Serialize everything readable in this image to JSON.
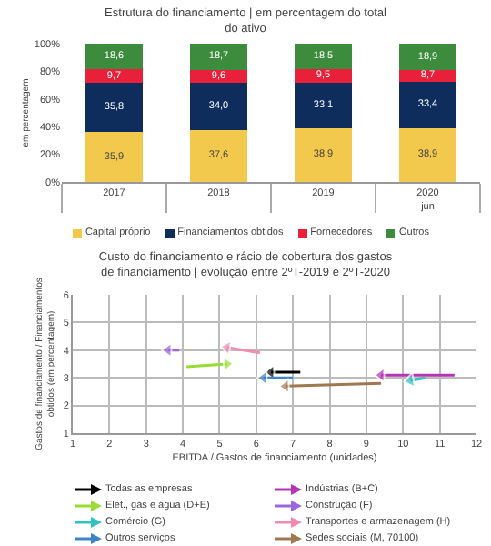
{
  "chart_data": [
    {
      "type": "bar",
      "title": "Estrutura do financiamento | em percentagem do total\ndo ativo",
      "ylabel": "em percentagem",
      "categories": [
        "2017",
        "2018",
        "2019",
        "2020\njun"
      ],
      "stacked": true,
      "legend": "bottom",
      "ylim": [
        0,
        100
      ],
      "yticks": [
        {
          "value": 0,
          "label": "0%"
        },
        {
          "value": 20,
          "label": "20%"
        },
        {
          "value": 40,
          "label": "40%"
        },
        {
          "value": 60,
          "label": "60%"
        },
        {
          "value": 80,
          "label": "80%"
        },
        {
          "value": 100,
          "label": "100%"
        }
      ],
      "series": [
        {
          "name": "Capital próprio",
          "color": "#f2c94c",
          "values": [
            35.9,
            37.6,
            38.9,
            38.9
          ],
          "value_labels": [
            "35,9",
            "37,6",
            "38,9",
            "38,9"
          ]
        },
        {
          "name": "Financiamentos obtidos",
          "color": "#0f2d5c",
          "values": [
            35.8,
            34.0,
            33.1,
            33.4
          ],
          "value_labels": [
            "35,8",
            "34,0",
            "33,1",
            "33,4"
          ]
        },
        {
          "name": "Fornecedores",
          "color": "#e8203a",
          "values": [
            9.7,
            9.6,
            9.5,
            8.7
          ],
          "value_labels": [
            "9,7",
            "9,6",
            "9,5",
            "8,7"
          ]
        },
        {
          "name": "Outros",
          "color": "#3d8b3d",
          "values": [
            18.6,
            18.7,
            18.5,
            18.9
          ],
          "value_labels": [
            "18,6",
            "18,7",
            "18,5",
            "18,9"
          ]
        }
      ]
    },
    {
      "type": "line",
      "title": "Custo do financiamento e rácio de cobertura dos gastos\nde financiamento | evolução entre 2ºT-2019 e 2ºT-2020",
      "xlabel": "EBITDA / Gastos de financiamento (unidades)",
      "ylabel": "Gastos de financiamento / Financiamentos\nobtidos (em percentagem)",
      "xlim": [
        1,
        12
      ],
      "xticks": [
        1,
        2,
        3,
        4,
        5,
        6,
        7,
        8,
        9,
        10,
        11,
        12
      ],
      "ylim": [
        1,
        6
      ],
      "yticks": [
        1,
        2,
        3,
        4,
        5,
        6
      ],
      "grid": true,
      "legend": "bottom",
      "marker": "triangle",
      "series": [
        {
          "name": "Todas as empresas",
          "color": "#000000",
          "x": [
            7.2,
            6.4
          ],
          "values": [
            3.2,
            3.2
          ]
        },
        {
          "name": "Indústrias (B+C)",
          "color": "#b533b5",
          "x": [
            11.4,
            9.4
          ],
          "values": [
            3.1,
            3.1
          ]
        },
        {
          "name": "Elet., gás e água (D+E)",
          "color": "#99dd33",
          "x": [
            4.1,
            5.2
          ],
          "values": [
            3.4,
            3.5
          ]
        },
        {
          "name": "Construção (F)",
          "color": "#9966dd",
          "x": [
            3.9,
            3.6
          ],
          "values": [
            4.0,
            4.0
          ]
        },
        {
          "name": "Comércio (G)",
          "color": "#33c0c0",
          "x": [
            10.6,
            10.2
          ],
          "values": [
            3.0,
            2.9
          ]
        },
        {
          "name": "Transportes e armazenagem (H)",
          "color": "#f08cb0",
          "x": [
            6.1,
            5.2
          ],
          "values": [
            3.9,
            4.1
          ]
        },
        {
          "name": "Outros serviços",
          "color": "#3d85c6",
          "x": [
            7.0,
            6.2
          ],
          "values": [
            3.0,
            3.0
          ]
        },
        {
          "name": "Sedes sociais (M, 70100)",
          "color": "#a07850",
          "x": [
            9.4,
            6.8
          ],
          "values": [
            2.8,
            2.7
          ]
        }
      ]
    }
  ]
}
